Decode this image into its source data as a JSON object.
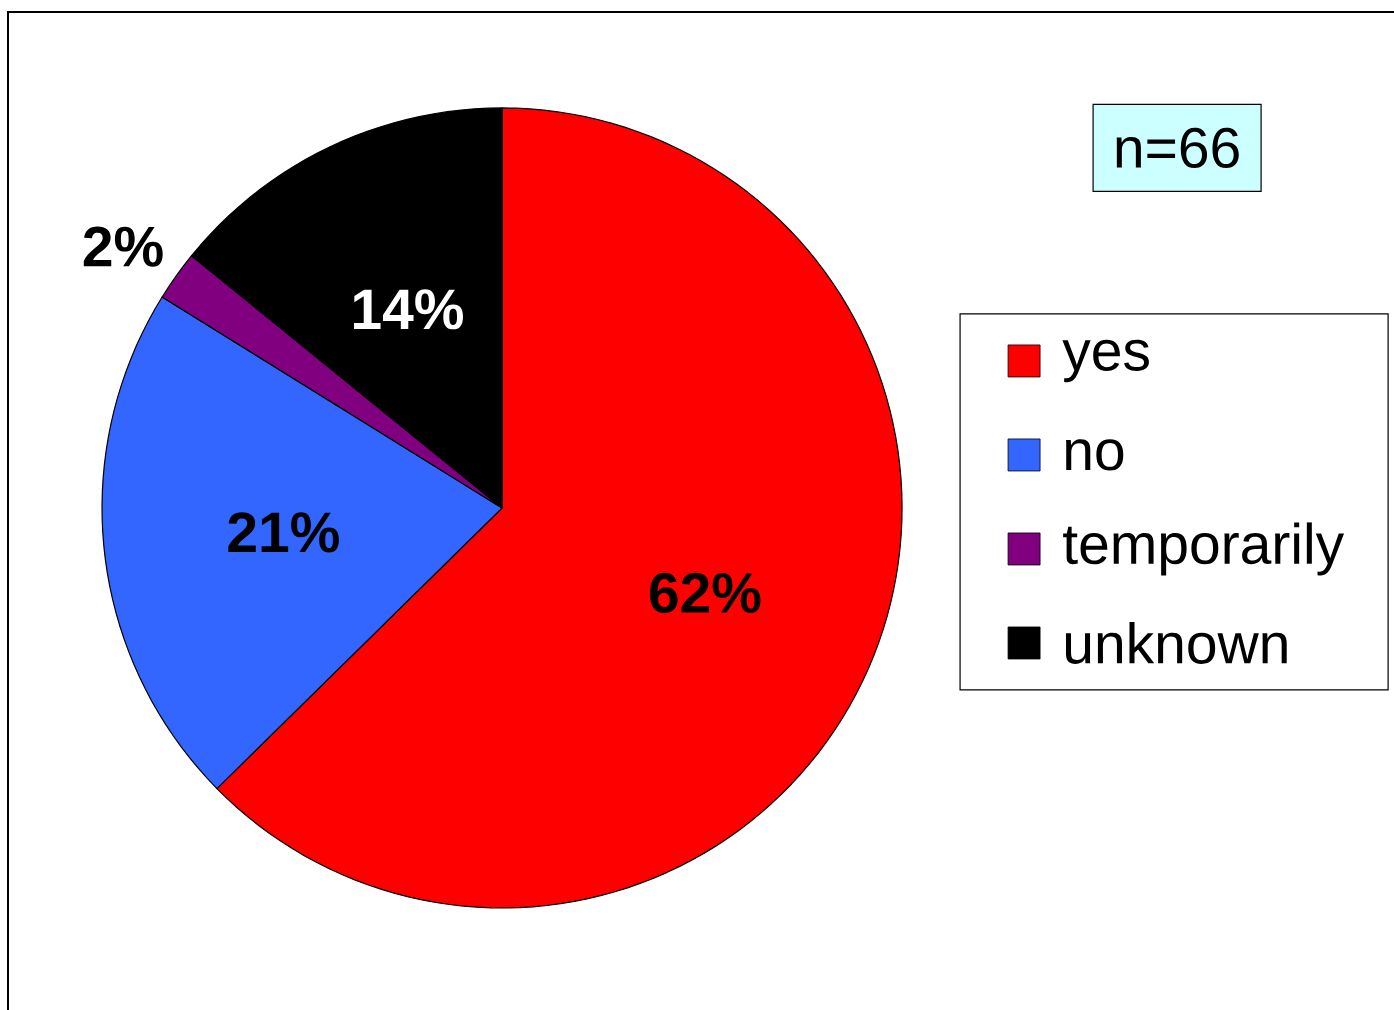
{
  "chart_data": {
    "type": "pie",
    "categories": [
      "yes",
      "no",
      "temporarily",
      "unknown"
    ],
    "values": [
      62,
      21,
      2,
      14
    ],
    "colors": [
      "#ff0000",
      "#3366ff",
      "#800080",
      "#000000"
    ],
    "value_labels": [
      "62%",
      "21%",
      "2%",
      "14%"
    ],
    "legend": "right",
    "annotations": [
      "n=66"
    ]
  }
}
